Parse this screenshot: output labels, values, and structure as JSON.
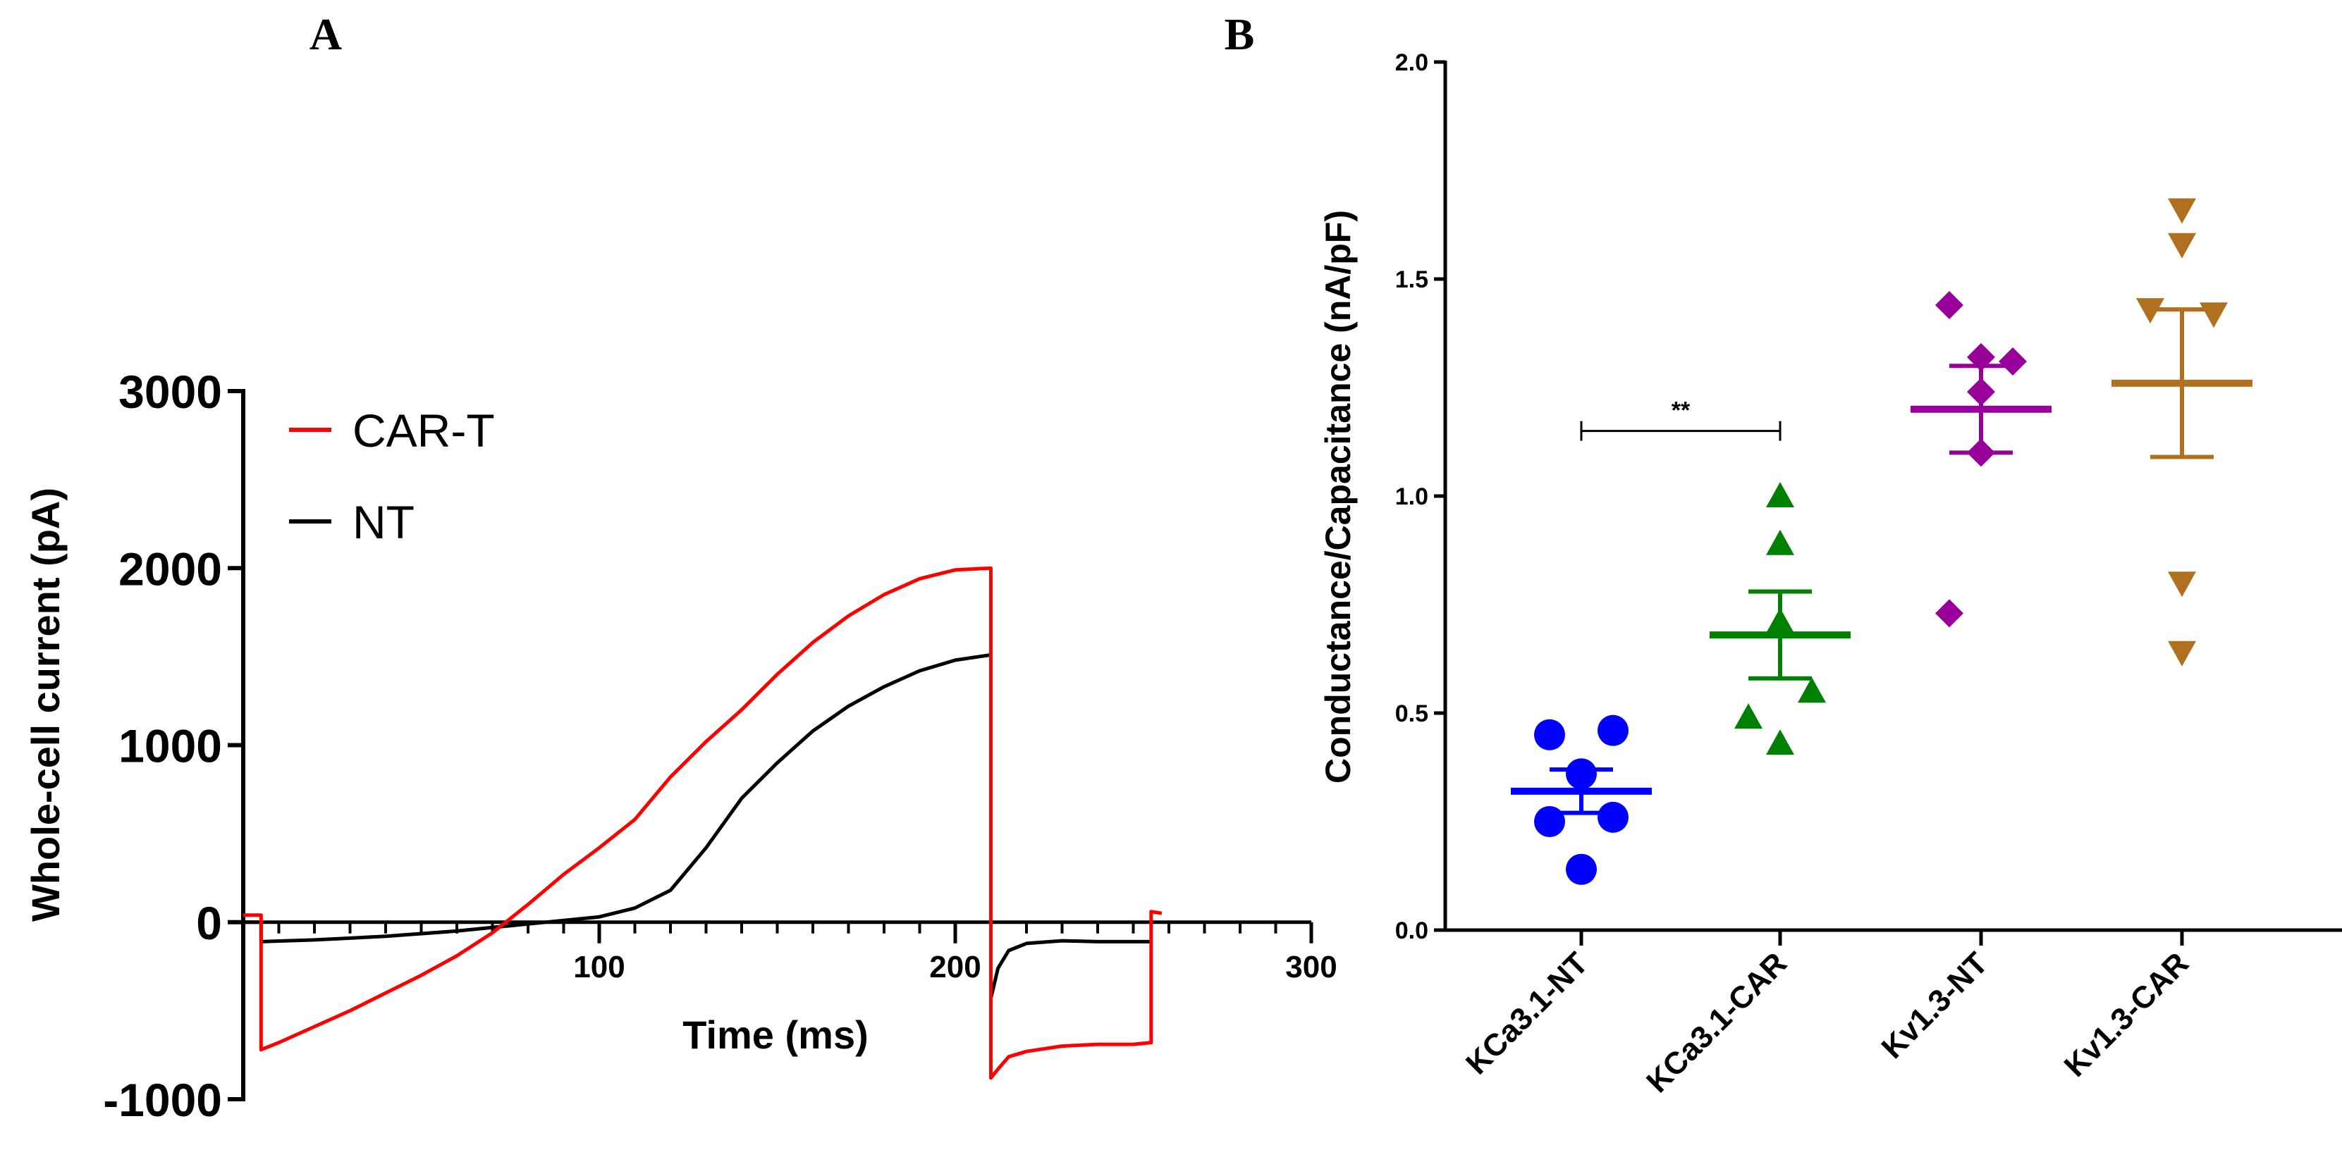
{
  "chart_data": [
    {
      "panel": "A",
      "type": "line",
      "title": "",
      "xlabel": "Time (ms)",
      "ylabel": "Whole-cell current (pA)",
      "xlim": [
        0,
        300
      ],
      "ylim": [
        -1000,
        3000
      ],
      "xticks": [
        100,
        200,
        300
      ],
      "xtick_labels": [
        "100",
        "200",
        "300"
      ],
      "yticks": [
        3000,
        2000,
        1000,
        0,
        -1000
      ],
      "ytick_labels": [
        "3000",
        "2000",
        "1000",
        "0",
        "-1000"
      ],
      "legend": {
        "position": "top-left",
        "entries": [
          "CAR-T",
          "NT"
        ]
      },
      "series": [
        {
          "name": "CAR-T",
          "color": "#ff0000",
          "x": [
            0,
            5,
            5,
            10,
            20,
            30,
            40,
            50,
            60,
            70,
            80,
            90,
            100,
            110,
            120,
            130,
            140,
            150,
            160,
            170,
            180,
            190,
            200,
            210,
            210,
            212,
            215,
            220,
            230,
            240,
            250,
            255,
            255,
            258
          ],
          "y": [
            40,
            40,
            -720,
            -680,
            -590,
            -500,
            -400,
            -300,
            -190,
            -60,
            100,
            270,
            420,
            580,
            820,
            1020,
            1200,
            1400,
            1580,
            1730,
            1850,
            1940,
            1990,
            2000,
            -880,
            -830,
            -760,
            -730,
            -700,
            -690,
            -690,
            -680,
            60,
            50
          ]
        },
        {
          "name": "NT",
          "color": "#000000",
          "x": [
            0,
            5,
            5,
            20,
            40,
            60,
            80,
            100,
            110,
            120,
            130,
            140,
            150,
            160,
            170,
            180,
            190,
            200,
            210,
            210,
            212,
            215,
            220,
            230,
            240,
            250,
            255
          ],
          "y": [
            0,
            0,
            -110,
            -100,
            -80,
            -50,
            -10,
            30,
            80,
            180,
            420,
            700,
            900,
            1080,
            1220,
            1330,
            1420,
            1480,
            1510,
            -430,
            -260,
            -160,
            -120,
            -105,
            -110,
            -110,
            -110
          ]
        }
      ]
    },
    {
      "panel": "B",
      "type": "scatter",
      "title": "",
      "xlabel": "",
      "ylabel": "Conductance/Capacitance (nA/pF)",
      "ylim": [
        0,
        2.0
      ],
      "yticks": [
        0.0,
        0.5,
        1.0,
        1.5,
        2.0
      ],
      "ytick_labels": [
        "0.0",
        "0.5",
        "1.0",
        "1.5",
        "2.0"
      ],
      "categories": [
        "KCa3.1-NT",
        "KCa3.1-CAR",
        "Kv1.3-NT",
        "Kv1.3-CAR"
      ],
      "groups": [
        {
          "name": "KCa3.1-NT",
          "color": "#0000ff",
          "marker": "circle",
          "points": [
            0.45,
            0.46,
            0.36,
            0.26,
            0.25,
            0.14
          ],
          "mean": 0.32,
          "sem": 0.05
        },
        {
          "name": "KCa3.1-CAR",
          "color": "#008000",
          "marker": "triangle-up",
          "points": [
            1.0,
            0.89,
            0.71,
            0.55,
            0.49,
            0.43
          ],
          "mean": 0.68,
          "sem": 0.1
        },
        {
          "name": "Kv1.3-NT",
          "color": "#990099",
          "marker": "diamond",
          "points": [
            1.44,
            1.32,
            1.31,
            1.24,
            1.1,
            0.73
          ],
          "mean": 1.2,
          "sem": 0.1
        },
        {
          "name": "Kv1.3-CAR",
          "color": "#b07020",
          "marker": "triangle-down",
          "points": [
            1.66,
            1.58,
            1.43,
            1.42,
            0.8,
            0.64
          ],
          "mean": 1.26,
          "sem": 0.17
        }
      ],
      "significance": {
        "label": "**",
        "between": [
          "KCa3.1-NT",
          "KCa3.1-CAR"
        ],
        "y": 1.15
      }
    }
  ]
}
